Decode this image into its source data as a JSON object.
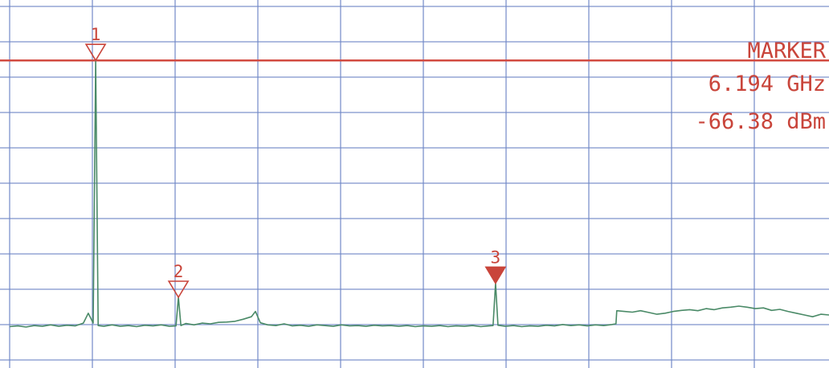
{
  "chart_data": {
    "type": "line",
    "title": "",
    "xlabel": "",
    "ylabel": "",
    "grid": true,
    "xlim": [
      0,
      100
    ],
    "ylim": [
      0,
      10
    ],
    "reference_level": 8.7,
    "series": [
      {
        "values": [
          [
            0.0,
            1.17
          ],
          [
            1.0,
            1.19
          ],
          [
            2.0,
            1.16
          ],
          [
            3.0,
            1.2
          ],
          [
            4.0,
            1.18
          ],
          [
            5.0,
            1.22
          ],
          [
            6.0,
            1.18
          ],
          [
            7.0,
            1.21
          ],
          [
            8.0,
            1.19
          ],
          [
            9.0,
            1.27
          ],
          [
            9.6,
            1.55
          ],
          [
            10.2,
            1.27
          ],
          [
            10.5,
            8.7
          ],
          [
            10.8,
            1.2
          ],
          [
            11.5,
            1.18
          ],
          [
            12.5,
            1.22
          ],
          [
            13.5,
            1.18
          ],
          [
            14.5,
            1.2
          ],
          [
            15.5,
            1.17
          ],
          [
            16.5,
            1.21
          ],
          [
            17.5,
            1.19
          ],
          [
            18.5,
            1.22
          ],
          [
            19.5,
            1.18
          ],
          [
            20.3,
            1.19
          ],
          [
            20.6,
            2.0
          ],
          [
            20.9,
            1.2
          ],
          [
            21.5,
            1.26
          ],
          [
            22.5,
            1.22
          ],
          [
            23.5,
            1.27
          ],
          [
            24.5,
            1.25
          ],
          [
            25.5,
            1.29
          ],
          [
            26.5,
            1.3
          ],
          [
            27.5,
            1.32
          ],
          [
            28.5,
            1.38
          ],
          [
            29.5,
            1.45
          ],
          [
            30.0,
            1.6
          ],
          [
            30.6,
            1.28
          ],
          [
            31.5,
            1.22
          ],
          [
            32.5,
            1.2
          ],
          [
            33.5,
            1.25
          ],
          [
            34.5,
            1.19
          ],
          [
            35.5,
            1.21
          ],
          [
            36.5,
            1.18
          ],
          [
            37.5,
            1.22
          ],
          [
            38.5,
            1.2
          ],
          [
            39.5,
            1.18
          ],
          [
            40.5,
            1.22
          ],
          [
            41.5,
            1.19
          ],
          [
            42.5,
            1.2
          ],
          [
            43.5,
            1.18
          ],
          [
            44.5,
            1.21
          ],
          [
            45.5,
            1.19
          ],
          [
            46.5,
            1.2
          ],
          [
            47.5,
            1.18
          ],
          [
            48.5,
            1.2
          ],
          [
            49.5,
            1.17
          ],
          [
            50.5,
            1.19
          ],
          [
            51.5,
            1.18
          ],
          [
            52.5,
            1.2
          ],
          [
            53.5,
            1.17
          ],
          [
            54.5,
            1.19
          ],
          [
            55.5,
            1.18
          ],
          [
            56.5,
            1.2
          ],
          [
            57.5,
            1.17
          ],
          [
            58.5,
            1.19
          ],
          [
            59.0,
            1.2
          ],
          [
            59.3,
            2.4
          ],
          [
            59.6,
            1.21
          ],
          [
            60.5,
            1.18
          ],
          [
            61.5,
            1.2
          ],
          [
            62.5,
            1.17
          ],
          [
            63.5,
            1.19
          ],
          [
            64.5,
            1.18
          ],
          [
            65.5,
            1.21
          ],
          [
            66.5,
            1.19
          ],
          [
            67.5,
            1.23
          ],
          [
            68.5,
            1.2
          ],
          [
            69.5,
            1.22
          ],
          [
            70.5,
            1.19
          ],
          [
            71.5,
            1.22
          ],
          [
            72.5,
            1.2
          ],
          [
            73.5,
            1.23
          ],
          [
            74.0,
            1.25
          ],
          [
            74.1,
            1.62
          ],
          [
            75.0,
            1.6
          ],
          [
            76.0,
            1.58
          ],
          [
            77.0,
            1.62
          ],
          [
            78.0,
            1.57
          ],
          [
            79.0,
            1.52
          ],
          [
            80.0,
            1.55
          ],
          [
            81.0,
            1.6
          ],
          [
            82.0,
            1.63
          ],
          [
            83.0,
            1.65
          ],
          [
            84.0,
            1.62
          ],
          [
            85.0,
            1.68
          ],
          [
            86.0,
            1.65
          ],
          [
            87.0,
            1.7
          ],
          [
            88.0,
            1.72
          ],
          [
            89.0,
            1.75
          ],
          [
            90.0,
            1.72
          ],
          [
            91.0,
            1.68
          ],
          [
            92.0,
            1.7
          ],
          [
            93.0,
            1.63
          ],
          [
            94.0,
            1.66
          ],
          [
            95.0,
            1.6
          ],
          [
            96.0,
            1.55
          ],
          [
            97.0,
            1.5
          ],
          [
            98.0,
            1.45
          ],
          [
            99.0,
            1.52
          ],
          [
            100.0,
            1.5
          ]
        ]
      }
    ],
    "markers": [
      {
        "label": "1",
        "x": 10.5,
        "y": 8.7,
        "filled": false
      },
      {
        "label": "2",
        "x": 20.6,
        "y": 2.0,
        "filled": false
      },
      {
        "label": "3",
        "x": 59.3,
        "y": 2.4,
        "filled": true
      }
    ],
    "readout": {
      "title": "MARKER",
      "frequency": "6.194 GHz",
      "level": "-66.38 dBm"
    },
    "colors": {
      "grid": "#6f87c6",
      "trace": "#4a8a67",
      "marker": "#c9453b",
      "reference": "#d24b41",
      "background": "#ffffff"
    }
  }
}
